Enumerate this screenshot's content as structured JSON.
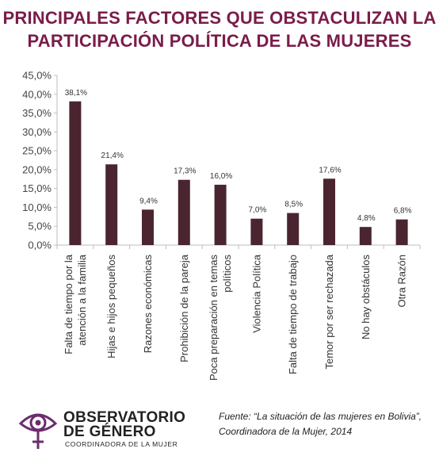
{
  "title": {
    "line1": "PRINCIPALES FACTORES QUE OBSTACULIZAN LA",
    "line2": "PARTICIPACIÓN POLÍTICA DE LAS MUJERES"
  },
  "chart_data": {
    "type": "bar",
    "title": "PRINCIPALES FACTORES QUE OBSTACULIZAN LA PARTICIPACIÓN POLÍTICA DE LAS MUJERES",
    "categories": [
      "Falta de tiempo por la atención a la familia",
      "Hijas e hijos pequeños",
      "Razones económicas",
      "Prohibición de la pareja",
      "Poca preparación en temas políticos",
      "Violencia Política",
      "Falta de tiempo de trabajo",
      "Temor por ser rechazada",
      "No hay obstáculos",
      "Otra Razón"
    ],
    "category_lines": [
      [
        "Falta de tiempo por la",
        "atención a la familia"
      ],
      [
        "Hijas e hijos pequeños"
      ],
      [
        "Razones económicas"
      ],
      [
        "Prohibición de la pareja"
      ],
      [
        "Poca preparación en temas",
        "políticos"
      ],
      [
        "Violencia Política"
      ],
      [
        "Falta de tiempo de trabajo"
      ],
      [
        "Temor por ser rechazada"
      ],
      [
        "No hay obstáculos"
      ],
      [
        "Otra Razón"
      ]
    ],
    "values": [
      38.1,
      21.4,
      9.4,
      17.3,
      16.0,
      7.0,
      8.5,
      17.6,
      4.8,
      6.8
    ],
    "value_labels": [
      "38,1%",
      "21,4%",
      "9,4%",
      "17,3%",
      "16,0%",
      "7,0%",
      "8,5%",
      "17,6%",
      "4,8%",
      "6,8%"
    ],
    "ylim": [
      0,
      45
    ],
    "yticks": [
      0,
      5,
      10,
      15,
      20,
      25,
      30,
      35,
      40,
      45
    ],
    "ytick_labels": [
      "0,0%",
      "5,0%",
      "10,0%",
      "15,0%",
      "20,0%",
      "25,0%",
      "30,0%",
      "35,0%",
      "40,0%",
      "45,0%"
    ],
    "xlabel": "",
    "ylabel": "",
    "grid": false,
    "bar_color": "#4a2530",
    "axis_color": "#bdbdbd"
  },
  "logo": {
    "line1": "OBSERVATORIO",
    "line2": "DE GÉNERO",
    "line3": "COORDINADORA DE LA MUJER",
    "color": "#6b2c6e"
  },
  "source": {
    "line1": "Fuente: “La situación de las mujeres  en Bolivia”,",
    "line2": "Coordinadora de la Mujer, 2014"
  }
}
